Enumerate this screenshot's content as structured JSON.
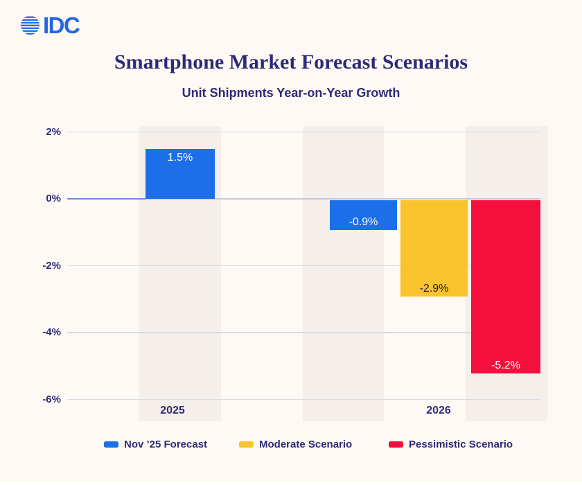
{
  "brand": {
    "name": "IDC"
  },
  "header": {
    "title": "Smartphone Market Forecast Scenarios",
    "subtitle": "Unit Shipments Year-on-Year Growth"
  },
  "chart_data": {
    "type": "bar",
    "title": "Smartphone Market Forecast Scenarios",
    "subtitle": "Unit Shipments Year-on-Year Growth",
    "categories": [
      "2025",
      "2026"
    ],
    "series": [
      {
        "name": "Nov ’25 Forecast",
        "color": "#1C6FE9",
        "values": [
          1.5,
          -0.9
        ]
      },
      {
        "name": "Moderate Scenario",
        "color": "#F9C32B",
        "values": [
          null,
          -2.9
        ]
      },
      {
        "name": "Pessimistic Scenario",
        "color": "#F50F3D",
        "values": [
          null,
          -5.2
        ]
      }
    ],
    "points": [
      {
        "category": "2025",
        "series": "Nov ’25 Forecast",
        "value": 1.5,
        "label": "1.5%"
      },
      {
        "category": "2026",
        "series": "Nov ’25 Forecast",
        "value": -0.9,
        "label": "-0.9%"
      },
      {
        "category": "2026",
        "series": "Moderate Scenario",
        "value": -2.9,
        "label": "-2.9%"
      },
      {
        "category": "2026",
        "series": "Pessimistic Scenario",
        "value": -5.2,
        "label": "-5.2%"
      }
    ],
    "y_ticks": [
      {
        "value": 2,
        "label": "2%"
      },
      {
        "value": 0,
        "label": "0%"
      },
      {
        "value": -2,
        "label": "-2%"
      },
      {
        "value": -4,
        "label": "-4%"
      },
      {
        "value": -6,
        "label": "-6%"
      }
    ],
    "ylim": [
      -6.2,
      2.2
    ],
    "grid": true,
    "legend_position": "bottom"
  },
  "legend": {
    "items": [
      {
        "label": "Nov ’25 Forecast",
        "color": "#1C6FE9"
      },
      {
        "label": "Moderate Scenario",
        "color": "#F9C32B"
      },
      {
        "label": "Pessimistic Scenario",
        "color": "#F50F3D"
      }
    ]
  },
  "colors": {
    "background": "#FEF9F4",
    "band": "#F4EFEA",
    "gridline": "#DCD9E8",
    "zero_gridline": "#C9C6DD",
    "zero_axis_blue": "#6A8BE6",
    "brand_blue": "#2566E3",
    "text_navy": "#2E2A78",
    "bar_label_light": "#FFFFFF",
    "bar_label_dark": "#1D1D1D"
  }
}
